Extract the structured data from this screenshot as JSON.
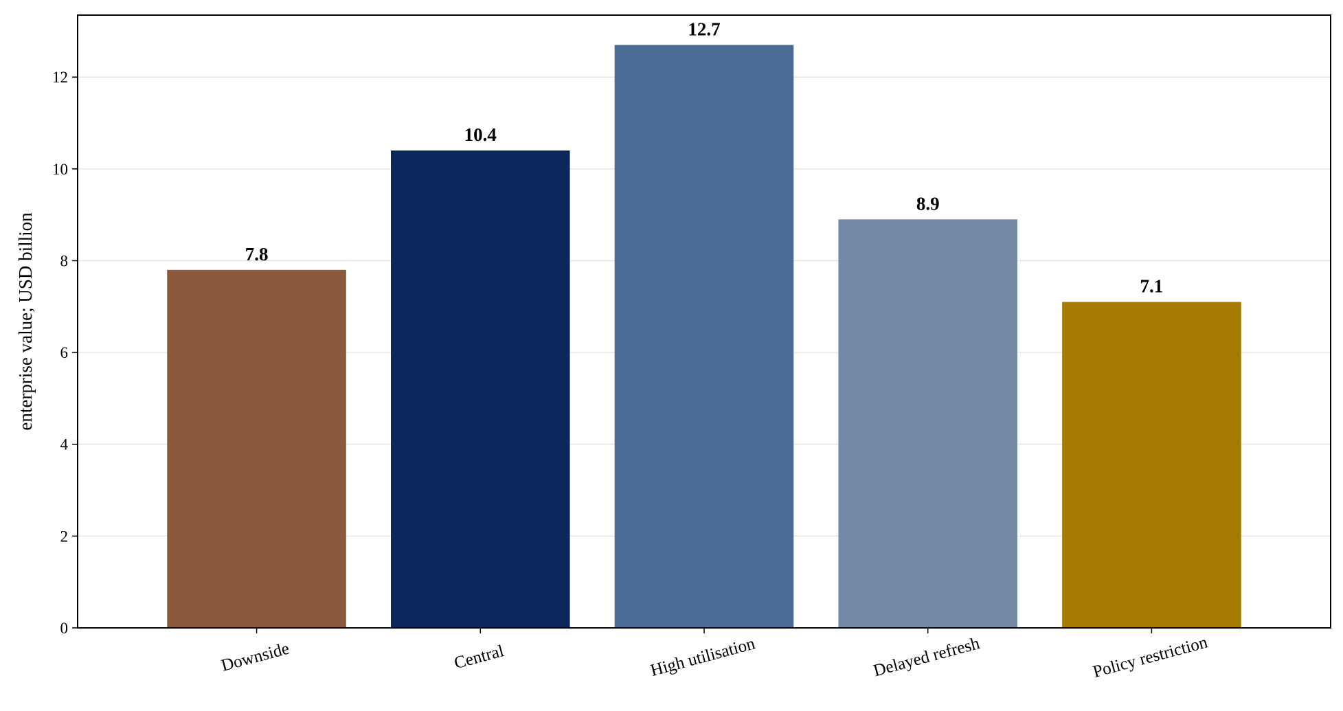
{
  "chart_data": {
    "type": "bar",
    "categories": [
      "Downside",
      "Central",
      "High utilisation",
      "Delayed refresh",
      "Policy restriction"
    ],
    "values": [
      7.8,
      10.4,
      12.7,
      8.9,
      7.1
    ],
    "value_labels": [
      "7.8",
      "10.4",
      "12.7",
      "8.9",
      "7.1"
    ],
    "bar_colors": [
      "#8b5a3c",
      "#0b285c",
      "#4a6b93",
      "#7389a8",
      "#a57a00"
    ],
    "title": "",
    "xlabel": "",
    "ylabel": "enterprise value; USD billion",
    "ylim": [
      0,
      13.35
    ],
    "yticks": [
      0,
      2,
      4,
      6,
      8,
      10,
      12
    ],
    "ytick_labels": [
      "0",
      "2",
      "4",
      "6",
      "8",
      "10",
      "12"
    ],
    "grid": "horizontal",
    "legend": "none"
  }
}
